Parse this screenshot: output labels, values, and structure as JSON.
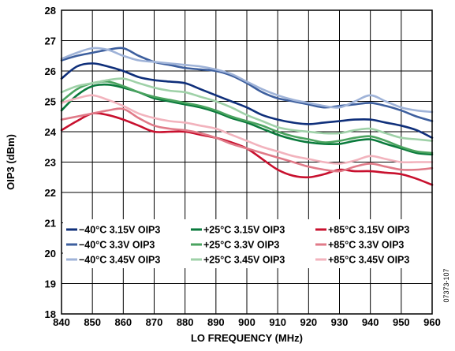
{
  "chart_data": {
    "type": "line",
    "xlabel": "LO FREQUENCY (MHz)",
    "ylabel": "OIP3 (dBm)",
    "xlim": [
      840,
      960
    ],
    "ylim": [
      18,
      28
    ],
    "xticks": [
      840,
      850,
      860,
      870,
      880,
      890,
      900,
      910,
      920,
      930,
      940,
      950,
      960
    ],
    "yticks": [
      18,
      19,
      20,
      21,
      22,
      23,
      24,
      25,
      26,
      27,
      28
    ],
    "grid": true,
    "legend_position": "bottom-inside",
    "figure_id": "07373-107",
    "x": [
      840,
      845,
      850,
      855,
      860,
      865,
      870,
      875,
      880,
      885,
      890,
      895,
      900,
      905,
      910,
      915,
      920,
      925,
      930,
      935,
      940,
      945,
      950,
      955,
      960
    ],
    "series": [
      {
        "name": "−40°C 3.15V OIP3",
        "color": "#0f2f7a",
        "values": [
          25.75,
          26.15,
          26.25,
          26.15,
          26.0,
          25.8,
          25.7,
          25.65,
          25.6,
          25.4,
          25.2,
          25.0,
          24.8,
          24.55,
          24.4,
          24.3,
          24.25,
          24.3,
          24.35,
          24.4,
          24.4,
          24.3,
          24.2,
          24.05,
          23.8
        ]
      },
      {
        "name": "−40°C 3.3V OIP3",
        "color": "#3d5f9e",
        "values": [
          26.35,
          26.5,
          26.6,
          26.7,
          26.75,
          26.5,
          26.3,
          26.2,
          26.1,
          26.05,
          26.0,
          25.85,
          25.6,
          25.3,
          25.1,
          25.0,
          24.9,
          24.8,
          24.85,
          24.9,
          24.95,
          24.85,
          24.7,
          24.5,
          24.35
        ]
      },
      {
        "name": "−40°C 3.45V OIP3",
        "color": "#9fb3d8",
        "values": [
          26.4,
          26.6,
          26.75,
          26.7,
          26.5,
          26.35,
          26.3,
          26.25,
          26.2,
          26.15,
          26.05,
          25.9,
          25.65,
          25.4,
          25.2,
          25.05,
          24.95,
          24.85,
          24.8,
          25.0,
          25.2,
          25.0,
          24.8,
          24.7,
          24.65
        ]
      },
      {
        "name": "+25°C 3.15V OIP3",
        "color": "#0a7a3c",
        "values": [
          24.7,
          25.2,
          25.5,
          25.55,
          25.45,
          25.3,
          25.1,
          25.0,
          24.9,
          24.8,
          24.65,
          24.45,
          24.3,
          24.1,
          23.9,
          23.75,
          23.65,
          23.6,
          23.6,
          23.7,
          23.75,
          23.6,
          23.45,
          23.3,
          23.25
        ]
      },
      {
        "name": "+25°C 3.3V OIP3",
        "color": "#4aa35f",
        "values": [
          25.0,
          25.4,
          25.6,
          25.65,
          25.5,
          25.3,
          25.15,
          25.05,
          24.95,
          24.85,
          24.7,
          24.5,
          24.35,
          24.2,
          24.0,
          23.85,
          23.75,
          23.65,
          23.7,
          23.8,
          23.85,
          23.7,
          23.5,
          23.35,
          23.3
        ]
      },
      {
        "name": "+25°C 3.45V OIP3",
        "color": "#9fd1a8",
        "values": [
          25.3,
          25.5,
          25.6,
          25.7,
          25.75,
          25.6,
          25.45,
          25.35,
          25.3,
          25.15,
          25.0,
          24.8,
          24.55,
          24.35,
          24.15,
          24.05,
          24.0,
          23.95,
          23.95,
          24.05,
          24.1,
          23.95,
          23.8,
          23.75,
          23.7
        ]
      },
      {
        "name": "+85°C 3.15V OIP3",
        "color": "#c8102e",
        "values": [
          24.05,
          24.35,
          24.6,
          24.55,
          24.4,
          24.2,
          24.0,
          24.0,
          24.0,
          23.9,
          23.8,
          23.65,
          23.45,
          23.1,
          22.75,
          22.55,
          22.5,
          22.6,
          22.75,
          22.7,
          22.7,
          22.65,
          22.6,
          22.45,
          22.25
        ]
      },
      {
        "name": "+85°C 3.3V OIP3",
        "color": "#e07a88",
        "values": [
          24.4,
          24.5,
          24.6,
          24.7,
          24.75,
          24.45,
          24.2,
          24.1,
          24.05,
          23.95,
          23.8,
          23.6,
          23.45,
          23.3,
          23.15,
          23.0,
          22.85,
          22.75,
          22.7,
          22.85,
          22.95,
          22.85,
          22.75,
          22.75,
          22.8
        ]
      },
      {
        "name": "+85°C 3.45V OIP3",
        "color": "#f2b3bd",
        "values": [
          24.95,
          25.1,
          25.2,
          25.05,
          24.85,
          24.6,
          24.45,
          24.35,
          24.3,
          24.2,
          24.1,
          23.9,
          23.7,
          23.5,
          23.35,
          23.2,
          23.1,
          23.0,
          22.95,
          23.05,
          23.2,
          23.1,
          23.0,
          23.0,
          23.0
        ]
      }
    ]
  }
}
